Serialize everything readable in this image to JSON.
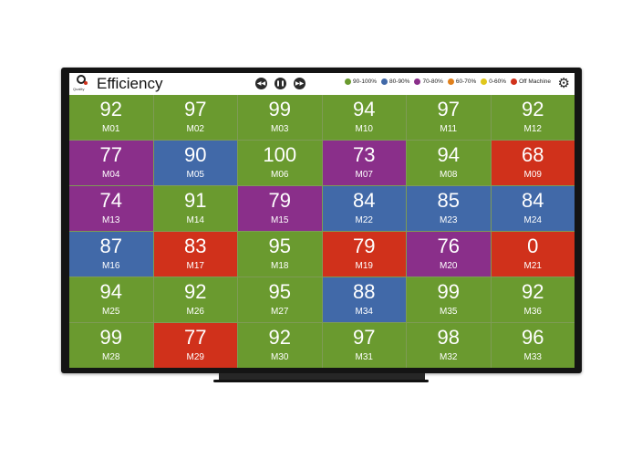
{
  "app": {
    "title": "Efficiency",
    "logo_text": "Quality"
  },
  "media_controls": [
    {
      "name": "rewind-icon",
      "glyph": "◀◀"
    },
    {
      "name": "pause-icon",
      "glyph": "❚❚"
    },
    {
      "name": "fast-forward-icon",
      "glyph": "▶▶"
    }
  ],
  "legend": [
    {
      "label": "90-100%",
      "color": "#6a9a2f"
    },
    {
      "label": "80-90%",
      "color": "#4169a8"
    },
    {
      "label": "70-80%",
      "color": "#8a2f8a"
    },
    {
      "label": "60-70%",
      "color": "#e0801c"
    },
    {
      "label": "0-60%",
      "color": "#e0c71c"
    },
    {
      "label": "Off Machine",
      "color": "#d0311b"
    }
  ],
  "settings_icon": "⚙",
  "colors": {
    "green": "#6a9a2f",
    "blue": "#4169a8",
    "purple": "#8a2f8a",
    "red": "#d0311b"
  },
  "machines": [
    {
      "value": "92",
      "id": "M01",
      "color": "green"
    },
    {
      "value": "97",
      "id": "M02",
      "color": "green"
    },
    {
      "value": "99",
      "id": "M03",
      "color": "green"
    },
    {
      "value": "94",
      "id": "M10",
      "color": "green"
    },
    {
      "value": "97",
      "id": "M11",
      "color": "green"
    },
    {
      "value": "92",
      "id": "M12",
      "color": "green"
    },
    {
      "value": "77",
      "id": "M04",
      "color": "purple"
    },
    {
      "value": "90",
      "id": "M05",
      "color": "blue"
    },
    {
      "value": "100",
      "id": "M06",
      "color": "green"
    },
    {
      "value": "73",
      "id": "M07",
      "color": "purple"
    },
    {
      "value": "94",
      "id": "M08",
      "color": "green"
    },
    {
      "value": "68",
      "id": "M09",
      "color": "red"
    },
    {
      "value": "74",
      "id": "M13",
      "color": "purple"
    },
    {
      "value": "91",
      "id": "M14",
      "color": "green"
    },
    {
      "value": "79",
      "id": "M15",
      "color": "purple"
    },
    {
      "value": "84",
      "id": "M22",
      "color": "blue"
    },
    {
      "value": "85",
      "id": "M23",
      "color": "blue"
    },
    {
      "value": "84",
      "id": "M24",
      "color": "blue"
    },
    {
      "value": "87",
      "id": "M16",
      "color": "blue"
    },
    {
      "value": "83",
      "id": "M17",
      "color": "red"
    },
    {
      "value": "95",
      "id": "M18",
      "color": "green"
    },
    {
      "value": "79",
      "id": "M19",
      "color": "red"
    },
    {
      "value": "76",
      "id": "M20",
      "color": "purple"
    },
    {
      "value": "0",
      "id": "M21",
      "color": "red"
    },
    {
      "value": "94",
      "id": "M25",
      "color": "green"
    },
    {
      "value": "92",
      "id": "M26",
      "color": "green"
    },
    {
      "value": "95",
      "id": "M27",
      "color": "green"
    },
    {
      "value": "88",
      "id": "M34",
      "color": "blue"
    },
    {
      "value": "99",
      "id": "M35",
      "color": "green"
    },
    {
      "value": "92",
      "id": "M36",
      "color": "green"
    },
    {
      "value": "99",
      "id": "M28",
      "color": "green"
    },
    {
      "value": "77",
      "id": "M29",
      "color": "red"
    },
    {
      "value": "92",
      "id": "M30",
      "color": "green"
    },
    {
      "value": "97",
      "id": "M31",
      "color": "green"
    },
    {
      "value": "98",
      "id": "M32",
      "color": "green"
    },
    {
      "value": "96",
      "id": "M33",
      "color": "green"
    }
  ]
}
